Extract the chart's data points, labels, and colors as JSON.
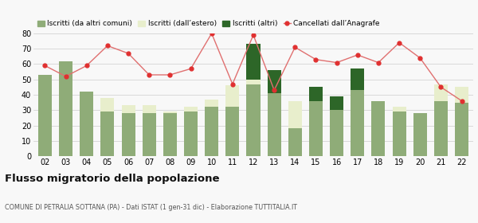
{
  "years": [
    "02",
    "03",
    "04",
    "05",
    "06",
    "07",
    "08",
    "09",
    "10",
    "11",
    "12",
    "13",
    "14",
    "15",
    "16",
    "17",
    "18",
    "19",
    "20",
    "21",
    "22"
  ],
  "iscritti_altri_comuni": [
    53,
    62,
    42,
    29,
    28,
    28,
    28,
    29,
    32,
    32,
    47,
    41,
    18,
    36,
    30,
    43,
    36,
    29,
    28,
    36,
    35
  ],
  "iscritti_estero": [
    0,
    0,
    0,
    9,
    5,
    5,
    1,
    3,
    5,
    14,
    3,
    0,
    18,
    0,
    0,
    0,
    0,
    3,
    0,
    11,
    10
  ],
  "iscritti_altri": [
    0,
    0,
    0,
    0,
    0,
    0,
    0,
    0,
    0,
    0,
    23,
    15,
    0,
    9,
    9,
    14,
    0,
    0,
    0,
    0,
    0
  ],
  "cancellati": [
    59,
    52,
    59,
    72,
    67,
    53,
    53,
    57,
    80,
    47,
    79,
    43,
    71,
    63,
    61,
    66,
    61,
    74,
    64,
    45,
    36
  ],
  "color_altri_comuni": "#8fac78",
  "color_estero": "#e8eecc",
  "color_altri": "#2d6628",
  "color_cancellati": "#e03030",
  "ylim": [
    0,
    80
  ],
  "yticks": [
    0,
    10,
    20,
    30,
    40,
    50,
    60,
    70,
    80
  ],
  "title": "Flusso migratorio della popolazione",
  "subtitle": "COMUNE DI PETRALIA SOTTANA (PA) - Dati ISTAT (1 gen-31 dic) - Elaborazione TUTTITALIA.IT",
  "legend_labels": [
    "Iscritti (da altri comuni)",
    "Iscritti (dall’estero)",
    "Iscritti (altri)",
    "Cancellati dall’Anagrafe"
  ],
  "bg_color": "#f8f8f8"
}
